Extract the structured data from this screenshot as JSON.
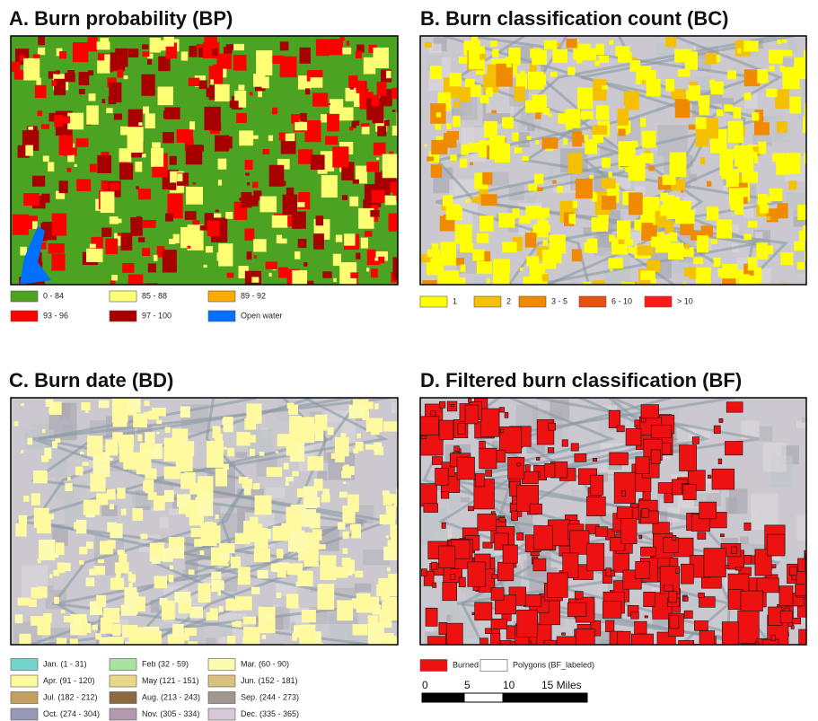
{
  "panels": [
    {
      "title": "A. Burn probability (BP)",
      "legend": [
        {
          "label": "0 - 84",
          "color": "#4ca321"
        },
        {
          "label": "85 - 88",
          "color": "#ffff73"
        },
        {
          "label": "89 - 92",
          "color": "#ffaa00"
        },
        {
          "label": "93 - 96",
          "color": "#ff0000"
        },
        {
          "label": "97 - 100",
          "color": "#a80000"
        },
        {
          "label": "Open water",
          "color": "#0070ff"
        }
      ]
    },
    {
      "title": "B. Burn classification count (BC)",
      "legend": [
        {
          "label": "1",
          "color": "#ffff00"
        },
        {
          "label": "2",
          "color": "#f5c000"
        },
        {
          "label": "3 - 5",
          "color": "#f08a00"
        },
        {
          "label": "6 - 10",
          "color": "#e85010"
        },
        {
          "label": "> 10",
          "color": "#ff1a1a"
        }
      ]
    },
    {
      "title": "C. Burn date (BD)",
      "legend": [
        {
          "label": "Jan. (1 - 31)",
          "color": "#74d4cc"
        },
        {
          "label": "Feb (32 - 59)",
          "color": "#a8e4a0"
        },
        {
          "label": "Mar. (60 - 90)",
          "color": "#fdfbb0"
        },
        {
          "label": "Apr. (91 - 120)",
          "color": "#fff9a0"
        },
        {
          "label": "May (121 - 151)",
          "color": "#e8d888"
        },
        {
          "label": "Jun. (152 - 181)",
          "color": "#d8c080"
        },
        {
          "label": "Jul. (182 - 212)",
          "color": "#c4a060"
        },
        {
          "label": "Aug. (213 - 243)",
          "color": "#8c6a40"
        },
        {
          "label": "Sep. (244 - 273)",
          "color": "#a09890"
        },
        {
          "label": "Oct. (274 - 304)",
          "color": "#9898b8"
        },
        {
          "label": "Nov. (305 - 334)",
          "color": "#b498b0"
        },
        {
          "label": "Dec. (335 - 365)",
          "color": "#d8c8d8"
        }
      ]
    },
    {
      "title": "D. Filtered burn classification (BF)",
      "legend": [
        {
          "label": "Burned",
          "color": "#ee1111"
        },
        {
          "label": "Polygons (BF_labeled)",
          "color": "#ffffff"
        }
      ]
    }
  ],
  "scale_bar": {
    "labels": [
      "0",
      "5",
      "10",
      "15 Miles"
    ]
  }
}
